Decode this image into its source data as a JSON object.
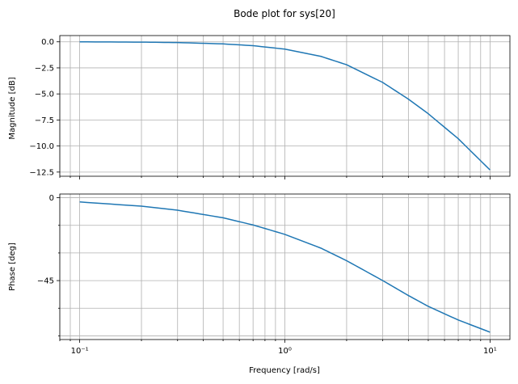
{
  "chart_data": [
    {
      "panel": "magnitude",
      "type": "line",
      "title": "Bode plot for sys[20]",
      "xlabel": "",
      "ylabel": "Magnitude [dB]",
      "xscale": "log",
      "xlim": [
        0.08,
        12.5
      ],
      "ylim": [
        -12.9,
        0.6
      ],
      "yticks": [
        0.0,
        -2.5,
        -5.0,
        -7.5,
        -10.0,
        -12.5
      ],
      "ytick_labels": [
        "0.0",
        "−2.5",
        "−5.0",
        "−7.5",
        "−10.0",
        "−12.5"
      ],
      "grid": true,
      "series": [
        {
          "color": "#1f77b4",
          "x": [
            0.1,
            0.2,
            0.3,
            0.5,
            0.7,
            1.0,
            1.5,
            2.0,
            3.0,
            4.0,
            5.0,
            7.0,
            10.0
          ],
          "y": [
            0.0,
            -0.03,
            -0.07,
            -0.2,
            -0.37,
            -0.7,
            -1.4,
            -2.2,
            -3.9,
            -5.5,
            -6.9,
            -9.3,
            -12.3
          ]
        }
      ]
    },
    {
      "panel": "phase",
      "type": "line",
      "xlabel": "Frequency [rad/s]",
      "ylabel": "Phase [deg]",
      "xscale": "log",
      "xlim": [
        0.08,
        12.5
      ],
      "ylim": [
        -77,
        2
      ],
      "xticks": [
        0.1,
        1.0,
        10.0
      ],
      "xtick_labels": [
        "10⁻¹",
        "10⁰",
        "10¹"
      ],
      "yticks": [
        0,
        -45
      ],
      "ytick_labels": [
        "0",
        "−45"
      ],
      "minor_yticks": [
        -15,
        -30,
        -60,
        -75
      ],
      "grid": true,
      "series": [
        {
          "color": "#1f77b4",
          "x": [
            0.1,
            0.2,
            0.3,
            0.5,
            0.7,
            1.0,
            1.5,
            2.0,
            3.0,
            4.0,
            5.0,
            7.0,
            10.0
          ],
          "y": [
            -2.3,
            -4.6,
            -6.8,
            -10.9,
            -14.8,
            -19.9,
            -27.4,
            -34.2,
            -45.0,
            -53.1,
            -59.0,
            -66.4,
            -73.0
          ]
        }
      ]
    }
  ]
}
